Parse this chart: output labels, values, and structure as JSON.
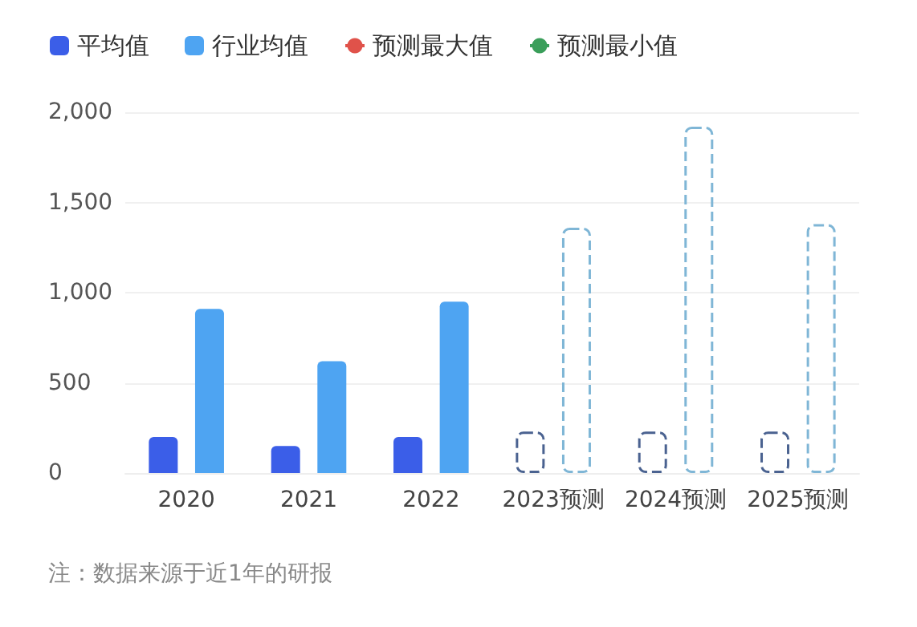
{
  "chart_data": {
    "type": "bar",
    "categories": [
      "2020",
      "2021",
      "2022",
      "2023预测",
      "2024预测",
      "2025预测"
    ],
    "series": [
      {
        "name": "平均值",
        "color": "#3b5ee8",
        "values": [
          200,
          150,
          200,
          null,
          null,
          null
        ]
      },
      {
        "name": "行业均值",
        "color": "#4ea4f2",
        "values": [
          910,
          620,
          950,
          null,
          null,
          null
        ]
      },
      {
        "name": "预测最大值",
        "type": "line",
        "color": "#e0524a",
        "values": [
          null,
          null,
          null,
          null,
          null,
          null
        ]
      },
      {
        "name": "预测最小值",
        "type": "line",
        "color": "#3a9e5a",
        "values": [
          null,
          null,
          null,
          null,
          null,
          null
        ]
      },
      {
        "color": "#4a6290",
        "line_style": "dashed",
        "values": [
          null,
          null,
          null,
          230,
          230,
          230
        ]
      },
      {
        "color": "#7fb6d6",
        "line_style": "dashed",
        "values": [
          null,
          null,
          null,
          1360,
          1920,
          1380
        ]
      }
    ],
    "ylim": [
      0,
      2000
    ],
    "yticks": [
      {
        "value": 0,
        "label": "0"
      },
      {
        "value": 500,
        "label": "500"
      },
      {
        "value": 1000,
        "label": "1,000"
      },
      {
        "value": 1500,
        "label": "1,500"
      },
      {
        "value": 2000,
        "label": "2,000"
      }
    ],
    "grid": "y",
    "legend": "top left",
    "annotations": [
      "注：数据来源于近1年的研报"
    ]
  }
}
